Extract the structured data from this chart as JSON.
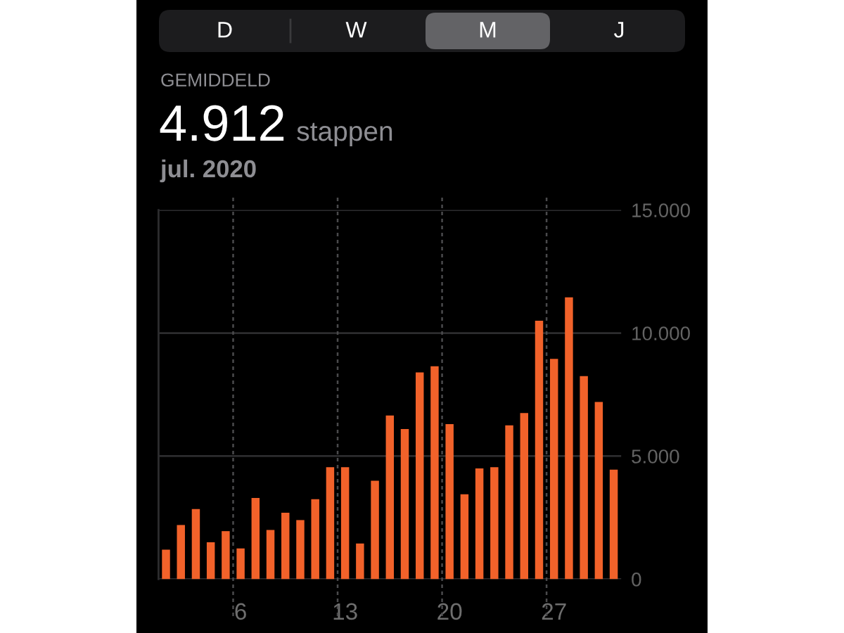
{
  "chart_data": {
    "type": "bar",
    "title": "4.912",
    "subtitle": "jul. 2020",
    "annotations": [
      "D",
      "W",
      "M",
      "J",
      "GEMIDDELD",
      "stappen"
    ],
    "categories": [
      null,
      null,
      null,
      null,
      null,
      "6",
      null,
      null,
      null,
      null,
      null,
      null,
      "13",
      null,
      null,
      null,
      null,
      null,
      null,
      "20",
      null,
      null,
      null,
      null,
      null,
      null,
      "27",
      null,
      null,
      null,
      null
    ],
    "values": [
      1200,
      2200,
      2850,
      1500,
      1950,
      1250,
      3300,
      2000,
      2700,
      2400,
      3250,
      4550,
      4550,
      1450,
      4000,
      6650,
      6100,
      8400,
      8650,
      6300,
      3450,
      4500,
      4550,
      6250,
      6750,
      10500,
      8950,
      11450,
      8250,
      7200,
      4450
    ],
    "color": "#f2622a",
    "ylim": [
      0,
      15000
    ],
    "yticks": [
      0,
      {
        "value": 5000,
        "label": "5.000"
      },
      {
        "value": 10000,
        "label": "10.000"
      },
      {
        "value": 15000,
        "label": "15.000"
      }
    ],
    "grid": true
  }
}
